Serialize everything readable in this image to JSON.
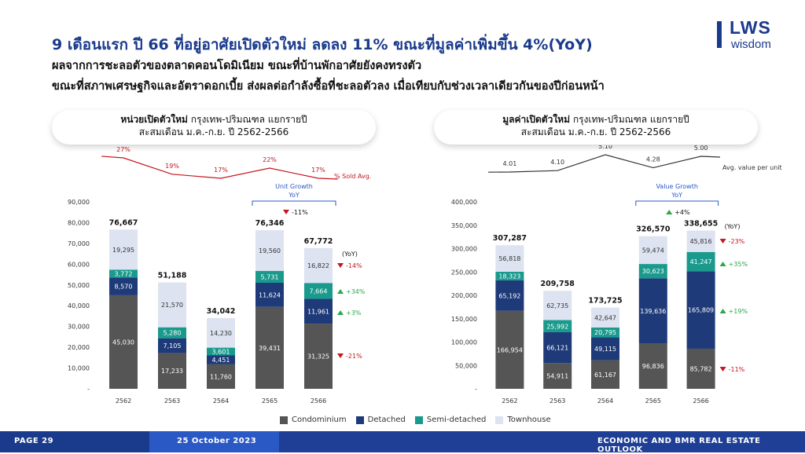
{
  "title": "9 เดือนแรก ปี 66 ที่อยู่อาศัยเปิดตัวใหม่ ลดลง 11% ขณะที่มูลค่าเพิ่มขึ้น 4%(YoY)",
  "subtitle_1": "ผลจากการชะลอตัวของตลาดคอนโดมิเนียม ขณะที่บ้านพักอาศัยยังคงทรงตัว",
  "subtitle_2": "ขณะที่สภาพเศรษฐกิจและอัตราดอกเบี้ย ส่งผลต่อกำลังซื้อที่ชะลอตัวลง เมื่อเทียบกับช่วงเวลาเดียวกันของปีก่อนหน้า",
  "logo": {
    "main": "LWS",
    "sub": "wisdom"
  },
  "left_header": {
    "bold": "หน่วยเปิดตัวใหม่",
    "rest": " กรุงเทพ-ปริมณฑล แยกรายปี",
    "line2": "สะสมเดือน ม.ค.-ก.ย. ปี 2562-2566"
  },
  "right_header": {
    "bold": "มูลค่าเปิดตัวใหม่",
    "rest": " กรุงเทพ-ปริมณฑล แยกรายปี",
    "line2": "สะสมเดือน ม.ค.-ก.ย. ปี 2562-2566"
  },
  "legend": [
    {
      "label": "Condominium",
      "color": "#555555"
    },
    {
      "label": "Detached",
      "color": "#1e3a78"
    },
    {
      "label": "Semi-detached",
      "color": "#1a9a8c"
    },
    {
      "label": "Townhouse",
      "color": "#dde3f0"
    }
  ],
  "footer": {
    "page": "PAGE 29",
    "date": "25 October 2023",
    "report": "ECONOMIC AND BMR REAL ESTATE OUTLOOK"
  },
  "chart_data": [
    {
      "type": "bar",
      "stacked": true,
      "categories": [
        "2562",
        "2563",
        "2564",
        "2565",
        "2566"
      ],
      "series": [
        {
          "name": "Condominium",
          "values": [
            45030,
            17233,
            11760,
            39431,
            31325
          ]
        },
        {
          "name": "Detached",
          "values": [
            8570,
            7105,
            4451,
            11624,
            11961
          ]
        },
        {
          "name": "Semi-detached",
          "values": [
            3772,
            5280,
            3601,
            5731,
            7664
          ]
        },
        {
          "name": "Townhouse",
          "values": [
            19295,
            21570,
            14230,
            19560,
            16822
          ]
        }
      ],
      "totals": [
        "76,667",
        "51,188",
        "34,042",
        "76,346",
        "67,772"
      ],
      "ylim": [
        0,
        90000
      ],
      "yticks": [
        "-",
        "10,000",
        "20,000",
        "30,000",
        "40,000",
        "50,000",
        "60,000",
        "70,000",
        "80,000",
        "90,000"
      ],
      "top_line": {
        "label": "% Sold Avg.",
        "values": [
          27,
          19,
          17,
          22,
          17
        ],
        "labels": [
          "27%",
          "19%",
          "17%",
          "22%",
          "17%"
        ]
      },
      "growth_box": {
        "line1": "Unit Growth",
        "line2": "YoY",
        "value": "-11%",
        "direction": "down"
      },
      "yoy_header": "(YoY)",
      "yoy": [
        {
          "series": "Townhouse",
          "label": "-14%",
          "direction": "down"
        },
        {
          "series": "Semi-detached",
          "label": "+34%",
          "direction": "up"
        },
        {
          "series": "Detached",
          "label": "+3%",
          "direction": "up"
        },
        {
          "series": "Condominium",
          "label": "-21%",
          "direction": "down"
        }
      ]
    },
    {
      "type": "bar",
      "stacked": true,
      "categories": [
        "2562",
        "2563",
        "2564",
        "2565",
        "2566"
      ],
      "series": [
        {
          "name": "Condominium",
          "values": [
            166954,
            54911,
            61167,
            96836,
            85782
          ]
        },
        {
          "name": "Detached",
          "values": [
            65192,
            66121,
            49115,
            139636,
            165809
          ]
        },
        {
          "name": "Semi-detached",
          "values": [
            18323,
            25992,
            20795,
            30623,
            41247
          ]
        },
        {
          "name": "Townhouse",
          "values": [
            56818,
            62735,
            42647,
            59474,
            45816
          ]
        }
      ],
      "totals": [
        "307,287",
        "209,758",
        "173,725",
        "326,570",
        "338,655"
      ],
      "ylim": [
        0,
        400000
      ],
      "yticks": [
        "-",
        "50,000",
        "100,000",
        "150,000",
        "200,000",
        "250,000",
        "300,000",
        "350,000",
        "400,000"
      ],
      "top_line": {
        "label": "Avg. value per unit",
        "values": [
          4.01,
          4.1,
          5.1,
          4.28,
          5.0
        ],
        "labels": [
          "4.01",
          "4.10",
          "5.10",
          "4.28",
          "5.00"
        ]
      },
      "growth_box": {
        "line1": "Value Growth",
        "line2": "YoY",
        "value": "+4%",
        "direction": "up"
      },
      "yoy_header": "(YoY)",
      "yoy": [
        {
          "series": "Townhouse",
          "label": "-23%",
          "direction": "down"
        },
        {
          "series": "Semi-detached",
          "label": "+35%",
          "direction": "up"
        },
        {
          "series": "Detached",
          "label": "+19%",
          "direction": "up"
        },
        {
          "series": "Condominium",
          "label": "-11%",
          "direction": "down"
        }
      ]
    }
  ]
}
